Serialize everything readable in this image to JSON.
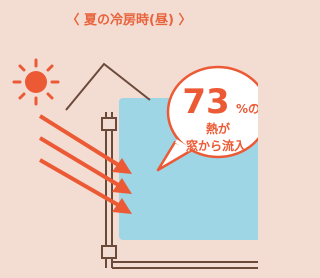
{
  "header": {
    "title": "〈 夏の冷房時(昼) 〉"
  },
  "bubble": {
    "number": "73",
    "unit": "%の",
    "line1": "熱が",
    "line2": "窓から流入"
  }
}
